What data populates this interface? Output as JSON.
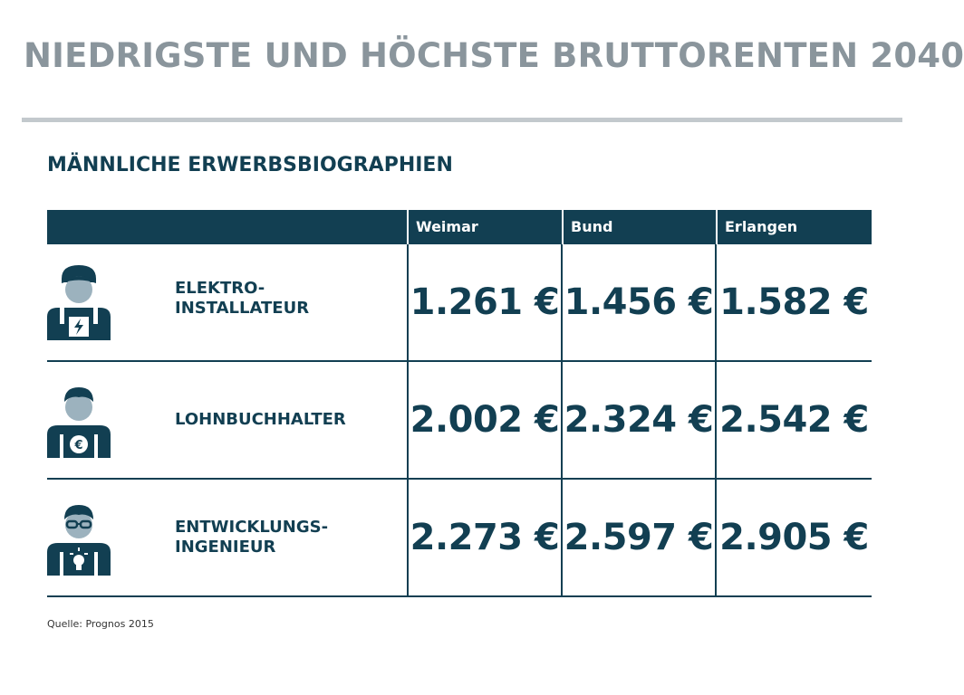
{
  "title": "NIEDRIGSTE UND HÖCHSTE BRUTTORENTEN 2040",
  "subtitle": "MÄNNLICHE ERWERBSBIOGRAPHIEN",
  "source": "Quelle: Prognos 2015",
  "colors": {
    "dark": "#123f52",
    "face": "#9cb2be",
    "title_gray": "#8a959c"
  },
  "chart_data": {
    "type": "table",
    "columns": [
      "Weimar",
      "Bund",
      "Erlangen"
    ],
    "rows": [
      {
        "label": "ELEKTRO-\nINSTALLATEUR",
        "icon": "electrician-icon",
        "values": [
          "1.261 €",
          "1.456 €",
          "1.582 €"
        ]
      },
      {
        "label": "LOHNBUCHHALTER",
        "icon": "accountant-icon",
        "values": [
          "2.002 €",
          "2.324 €",
          "2.542 €"
        ]
      },
      {
        "label": "ENTWICKLUNGS-\nINGENIEUR",
        "icon": "engineer-icon",
        "values": [
          "2.273 €",
          "2.597 €",
          "2.905 €"
        ]
      }
    ]
  }
}
